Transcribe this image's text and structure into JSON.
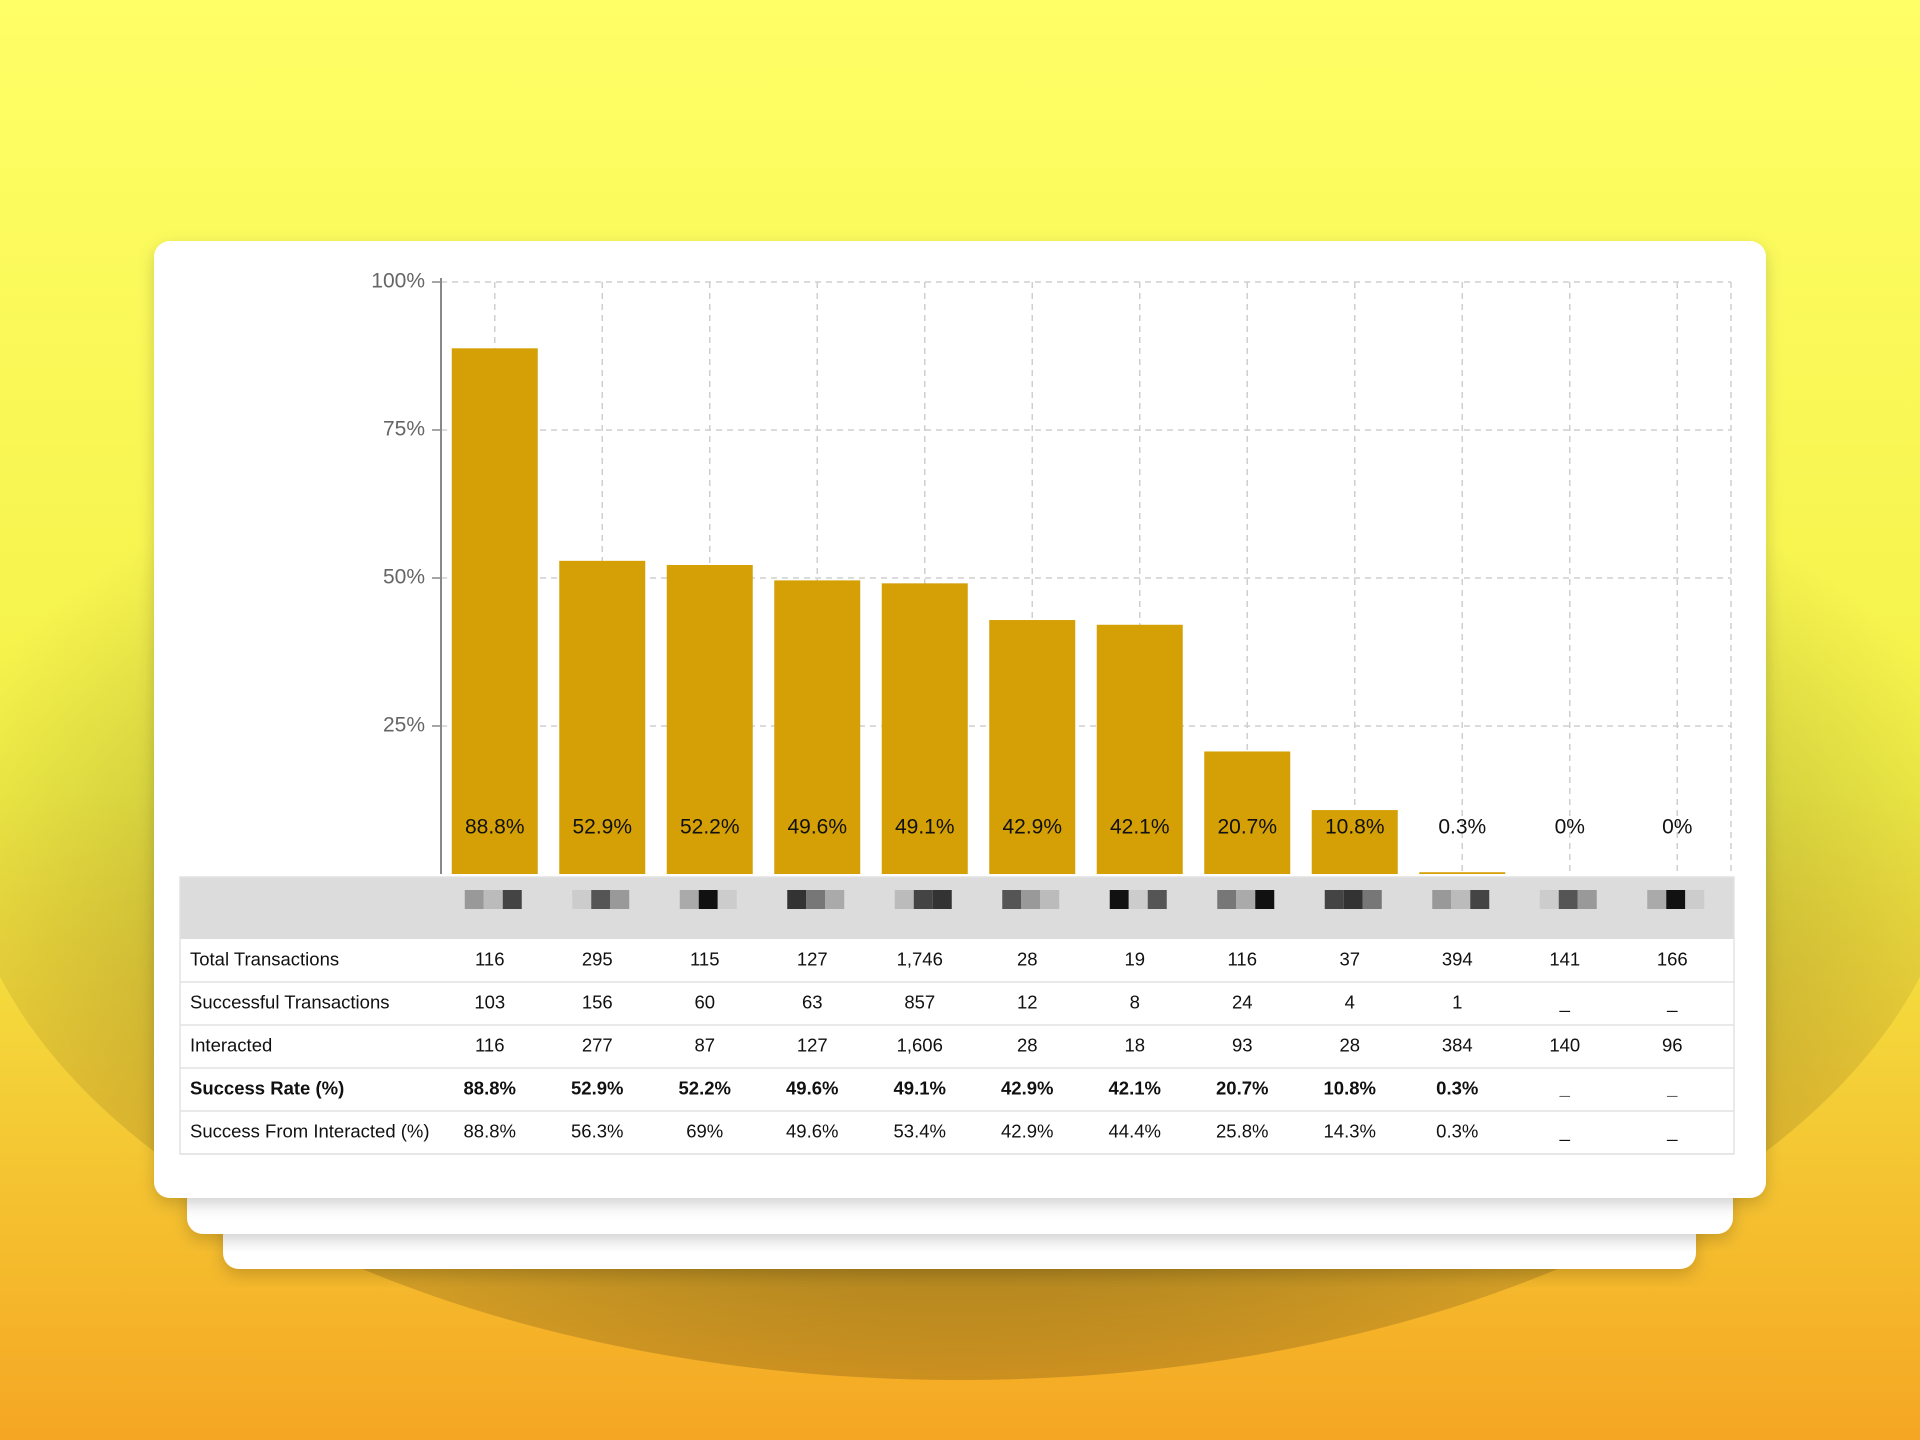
{
  "chart_data": {
    "type": "bar",
    "categories": [
      null,
      null,
      null,
      null,
      null,
      null,
      null,
      null,
      null,
      null,
      null,
      null
    ],
    "values": [
      88.8,
      52.9,
      52.2,
      49.6,
      49.1,
      42.9,
      42.1,
      20.7,
      10.8,
      0.3,
      0,
      0
    ],
    "value_labels": [
      "88.8%",
      "52.9%",
      "52.2%",
      "49.6%",
      "49.1%",
      "42.9%",
      "42.1%",
      "20.7%",
      "10.8%",
      "0.3%",
      "0%",
      "0%"
    ],
    "color": "#d4a006",
    "ylim": [
      0,
      100
    ],
    "yticks": [
      {
        "value": 25,
        "label": "25%"
      },
      {
        "value": 50,
        "label": "50%"
      },
      {
        "value": 75,
        "label": "75%"
      },
      {
        "value": 100,
        "label": "100%"
      }
    ],
    "grid": true
  },
  "table": {
    "rows": [
      {
        "label": "Total Transactions",
        "cells": [
          "116",
          "295",
          "115",
          "127",
          "1,746",
          "28",
          "19",
          "116",
          "37",
          "394",
          "141",
          "166"
        ]
      },
      {
        "label": "Successful Transactions",
        "cells": [
          "103",
          "156",
          "60",
          "63",
          "857",
          "12",
          "8",
          "24",
          "4",
          "1",
          "_",
          "_"
        ]
      },
      {
        "label": "Interacted",
        "cells": [
          "116",
          "277",
          "87",
          "127",
          "1,606",
          "28",
          "18",
          "93",
          "28",
          "384",
          "140",
          "96"
        ]
      },
      {
        "label": "Success Rate (%)",
        "bold": true,
        "cells": [
          "88.8%",
          "52.9%",
          "52.2%",
          "49.6%",
          "49.1%",
          "42.9%",
          "42.1%",
          "20.7%",
          "10.8%",
          "0.3%",
          "_",
          "_"
        ]
      },
      {
        "label": "Success From Interacted (%)",
        "cells": [
          "88.8%",
          "56.3%",
          "69%",
          "49.6%",
          "53.4%",
          "42.9%",
          "44.4%",
          "25.8%",
          "14.3%",
          "0.3%",
          "_",
          "_"
        ]
      }
    ]
  }
}
